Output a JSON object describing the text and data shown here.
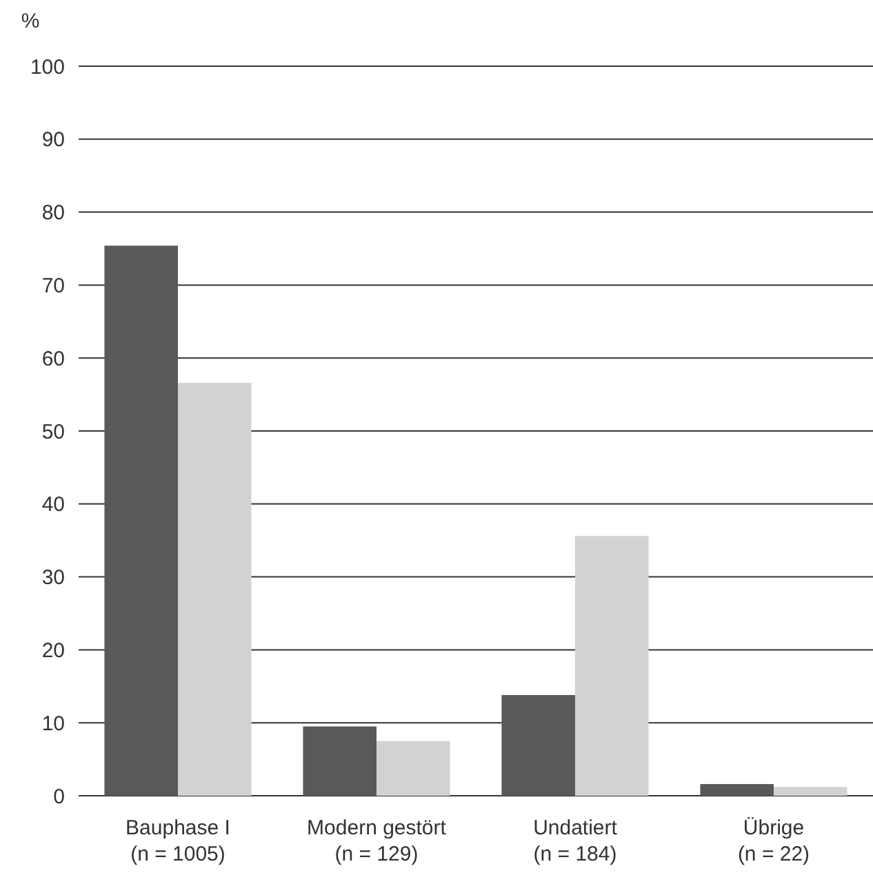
{
  "chart_data": {
    "type": "bar",
    "ylabel": "%",
    "categories": [
      "Bauphase I\n(n = 1005)",
      "Modern gestört\n(n = 129)",
      "Undatiert\n(n = 184)",
      "Übrige\n(n = 22)"
    ],
    "series": [
      {
        "color": "#58595b",
        "values": [
          75.4,
          9.5,
          13.8,
          1.6
        ]
      },
      {
        "color": "#d1d2d4",
        "values": [
          56.6,
          7.5,
          35.6,
          1.2
        ]
      }
    ],
    "ylim": [
      0,
      100
    ],
    "yticks": [
      0,
      10,
      20,
      30,
      40,
      50,
      60,
      70,
      80,
      90,
      100
    ],
    "grid": "y"
  }
}
